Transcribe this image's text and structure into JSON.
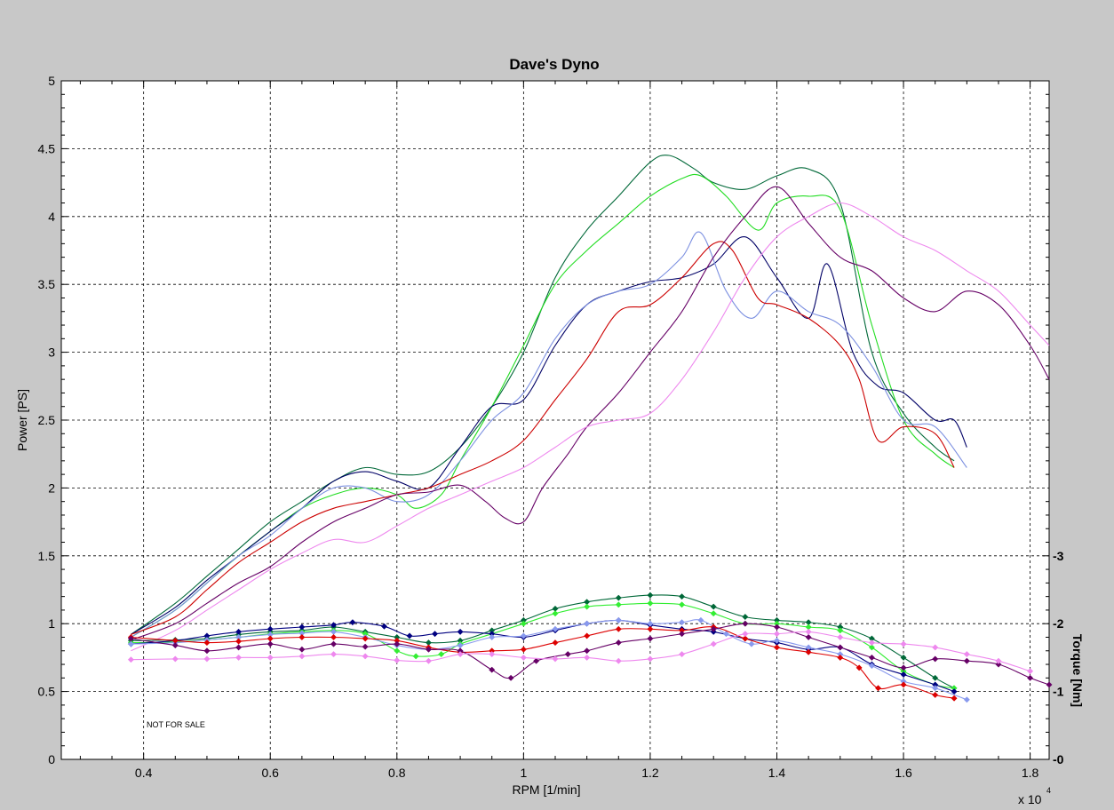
{
  "chart_data": {
    "type": "line",
    "title": "Dave's Dyno",
    "xlabel": "RPM [1/min]",
    "ylabel": "Power [PS]",
    "y2label": "Torque [Nm]",
    "x_multiplier_label": "x 10",
    "x_multiplier_exp": "4",
    "annotation": "NOT FOR SALE",
    "xlim": [
      2700,
      18300
    ],
    "ylim": [
      0,
      5
    ],
    "y2lim": [
      0,
      3
    ],
    "grid": true,
    "x_ticks": [
      {
        "value": 4000,
        "label": "0.4"
      },
      {
        "value": 6000,
        "label": "0.6"
      },
      {
        "value": 8000,
        "label": "0.8"
      },
      {
        "value": 10000,
        "label": "1"
      },
      {
        "value": 12000,
        "label": "1.2"
      },
      {
        "value": 14000,
        "label": "1.4"
      },
      {
        "value": 16000,
        "label": "1.6"
      },
      {
        "value": 18000,
        "label": "1.8"
      }
    ],
    "y_ticks": [
      {
        "value": 0,
        "label": "0"
      },
      {
        "value": 0.5,
        "label": "0.5"
      },
      {
        "value": 1,
        "label": "1"
      },
      {
        "value": 1.5,
        "label": "1.5"
      },
      {
        "value": 2,
        "label": "2"
      },
      {
        "value": 2.5,
        "label": "2.5"
      },
      {
        "value": 3,
        "label": "3"
      },
      {
        "value": 3.5,
        "label": "3.5"
      },
      {
        "value": 4,
        "label": "4"
      },
      {
        "value": 4.5,
        "label": "4.5"
      },
      {
        "value": 5,
        "label": "5"
      }
    ],
    "y2_ticks": [
      {
        "value": 0,
        "label": "0"
      },
      {
        "value": 1,
        "label": "1"
      },
      {
        "value": 2,
        "label": "2"
      },
      {
        "value": 3,
        "label": "3"
      }
    ],
    "power_series": [
      {
        "color": "#006838",
        "x": [
          3800,
          4500,
          5000,
          5500,
          6000,
          6500,
          7000,
          7500,
          8000,
          8500,
          9000,
          9500,
          10000,
          10500,
          11000,
          11500,
          12000,
          12300,
          12700,
          13000,
          13500,
          14000,
          14500,
          15000,
          15500,
          16000,
          16500,
          16800
        ],
        "y": [
          0.92,
          1.15,
          1.35,
          1.55,
          1.75,
          1.9,
          2.05,
          2.15,
          2.1,
          2.12,
          2.3,
          2.6,
          3.0,
          3.55,
          3.9,
          4.15,
          4.4,
          4.45,
          4.35,
          4.25,
          4.2,
          4.3,
          4.35,
          4.1,
          3.0,
          2.55,
          2.3,
          2.2
        ]
      },
      {
        "color": "#22dd22",
        "x": [
          3800,
          4500,
          5000,
          5500,
          6000,
          6500,
          7000,
          7500,
          8000,
          8300,
          8700,
          9000,
          9500,
          10000,
          10500,
          11000,
          11500,
          12000,
          12500,
          12800,
          13200,
          13700,
          14000,
          14500,
          15000,
          15500,
          16000,
          16500,
          16800
        ],
        "y": [
          0.9,
          1.1,
          1.3,
          1.5,
          1.68,
          1.85,
          1.95,
          2.0,
          1.95,
          1.85,
          1.95,
          2.2,
          2.6,
          3.05,
          3.5,
          3.75,
          3.95,
          4.15,
          4.28,
          4.3,
          4.15,
          3.9,
          4.1,
          4.15,
          4.05,
          3.2,
          2.5,
          2.25,
          2.15
        ]
      },
      {
        "color": "#000066",
        "x": [
          3800,
          4500,
          5000,
          5500,
          6000,
          6500,
          7000,
          7500,
          8000,
          8500,
          9000,
          9500,
          10000,
          10500,
          11000,
          11500,
          12000,
          12500,
          13000,
          13500,
          14000,
          14500,
          14800,
          15200,
          15600,
          16000,
          16500,
          16800,
          17000
        ],
        "y": [
          0.92,
          1.12,
          1.32,
          1.5,
          1.68,
          1.85,
          2.05,
          2.12,
          2.05,
          2.0,
          2.3,
          2.6,
          2.65,
          3.05,
          3.35,
          3.45,
          3.52,
          3.55,
          3.65,
          3.85,
          3.55,
          3.25,
          3.65,
          3.0,
          2.75,
          2.7,
          2.5,
          2.5,
          2.3
        ]
      },
      {
        "color": "#7b8fe0",
        "x": [
          3800,
          4500,
          5000,
          5500,
          6000,
          6500,
          7000,
          7500,
          8000,
          8500,
          9000,
          9500,
          10000,
          10500,
          11000,
          11500,
          12000,
          12500,
          12800,
          13200,
          13600,
          14000,
          14500,
          15000,
          15500,
          16000,
          16500,
          17000
        ],
        "y": [
          0.9,
          1.1,
          1.3,
          1.5,
          1.65,
          1.85,
          2.0,
          2.0,
          1.9,
          1.95,
          2.2,
          2.5,
          2.7,
          3.1,
          3.35,
          3.45,
          3.5,
          3.7,
          3.88,
          3.45,
          3.25,
          3.45,
          3.3,
          3.2,
          2.9,
          2.5,
          2.45,
          2.15
        ]
      },
      {
        "color": "#cc0000",
        "x": [
          3800,
          4500,
          5000,
          5500,
          6000,
          6500,
          7000,
          7500,
          8000,
          8500,
          9000,
          9500,
          10000,
          10500,
          11000,
          11500,
          12000,
          12500,
          13000,
          13300,
          13700,
          14000,
          14500,
          15000,
          15300,
          15600,
          16000,
          16500,
          16800
        ],
        "y": [
          0.92,
          1.05,
          1.25,
          1.45,
          1.6,
          1.75,
          1.85,
          1.9,
          1.95,
          2.0,
          2.1,
          2.2,
          2.35,
          2.65,
          2.95,
          3.3,
          3.35,
          3.55,
          3.8,
          3.75,
          3.4,
          3.35,
          3.25,
          3.05,
          2.8,
          2.35,
          2.45,
          2.4,
          2.15
        ]
      },
      {
        "color": "#660066",
        "x": [
          3800,
          4500,
          5000,
          5500,
          6000,
          6500,
          7000,
          7500,
          8000,
          8500,
          9000,
          9400,
          9700,
          10000,
          10300,
          10700,
          11000,
          11500,
          12000,
          12500,
          13000,
          13500,
          14000,
          14500,
          15000,
          15500,
          16000,
          16500,
          17000,
          17500,
          18000,
          18300
        ],
        "y": [
          0.88,
          1.0,
          1.15,
          1.3,
          1.42,
          1.6,
          1.75,
          1.85,
          1.95,
          1.97,
          2.02,
          1.9,
          1.78,
          1.75,
          2.0,
          2.25,
          2.45,
          2.7,
          3.0,
          3.3,
          3.7,
          4.0,
          4.22,
          3.95,
          3.7,
          3.6,
          3.4,
          3.3,
          3.45,
          3.35,
          3.05,
          2.8
        ]
      },
      {
        "color": "#ee88ee",
        "x": [
          3800,
          4500,
          5000,
          5500,
          6000,
          6500,
          7000,
          7500,
          8000,
          8500,
          9000,
          9500,
          10000,
          10500,
          11000,
          11500,
          12000,
          12500,
          13000,
          13500,
          14000,
          14500,
          15000,
          15500,
          16000,
          16500,
          17000,
          17500,
          18000,
          18300
        ],
        "y": [
          0.8,
          0.95,
          1.1,
          1.25,
          1.4,
          1.52,
          1.62,
          1.6,
          1.72,
          1.85,
          1.95,
          2.05,
          2.15,
          2.3,
          2.45,
          2.5,
          2.55,
          2.8,
          3.15,
          3.55,
          3.85,
          4.0,
          4.1,
          4.0,
          3.85,
          3.75,
          3.6,
          3.45,
          3.2,
          3.05
        ]
      }
    ],
    "torque_series": [
      {
        "color": "#006838",
        "x": [
          3800,
          4500,
          5000,
          5500,
          6000,
          6500,
          7000,
          7500,
          8000,
          8500,
          9000,
          9500,
          10000,
          10500,
          11000,
          11500,
          12000,
          12500,
          13000,
          13500,
          14000,
          14500,
          15000,
          15500,
          16000,
          16500,
          16800
        ],
        "y": [
          1.75,
          1.76,
          1.78,
          1.84,
          1.88,
          1.9,
          1.95,
          1.88,
          1.8,
          1.72,
          1.75,
          1.9,
          2.05,
          2.22,
          2.32,
          2.38,
          2.42,
          2.4,
          2.25,
          2.1,
          2.05,
          2.02,
          1.95,
          1.78,
          1.5,
          1.2,
          1.05
        ]
      },
      {
        "color": "#33ee33",
        "x": [
          3800,
          4500,
          5000,
          5500,
          6000,
          6500,
          7000,
          7500,
          8000,
          8300,
          8700,
          9000,
          9500,
          10000,
          10500,
          11000,
          11500,
          12000,
          12500,
          13000,
          13500,
          14000,
          14500,
          15000,
          15500,
          16000,
          16500,
          16800
        ],
        "y": [
          1.72,
          1.73,
          1.76,
          1.8,
          1.85,
          1.88,
          1.9,
          1.85,
          1.6,
          1.52,
          1.55,
          1.7,
          1.85,
          2.0,
          2.15,
          2.25,
          2.28,
          2.3,
          2.28,
          2.15,
          2.0,
          2.0,
          1.95,
          1.9,
          1.65,
          1.3,
          1.1,
          1.05
        ]
      },
      {
        "color": "#000080",
        "x": [
          3800,
          4500,
          5000,
          5500,
          6000,
          6500,
          7000,
          7300,
          7800,
          8200,
          8600,
          9000,
          9500,
          10000,
          10500,
          11000,
          11500,
          12000,
          12500,
          13000,
          13500,
          14000,
          14500,
          15000,
          15500,
          16000,
          16500,
          16800
        ],
        "y": [
          1.7,
          1.75,
          1.82,
          1.88,
          1.92,
          1.95,
          1.98,
          2.02,
          1.96,
          1.82,
          1.85,
          1.88,
          1.85,
          1.8,
          1.9,
          2.0,
          2.05,
          1.98,
          1.92,
          1.88,
          1.78,
          1.72,
          1.62,
          1.65,
          1.4,
          1.25,
          1.1,
          1.0
        ]
      },
      {
        "color": "#8899ee",
        "x": [
          3800,
          4500,
          5000,
          5500,
          6000,
          6500,
          7000,
          7500,
          8000,
          8500,
          9000,
          9500,
          10000,
          10500,
          11000,
          11500,
          12000,
          12500,
          12800,
          13200,
          13600,
          14000,
          14500,
          15000,
          15500,
          16000,
          16500,
          17000
        ],
        "y": [
          1.7,
          1.72,
          1.76,
          1.8,
          1.84,
          1.86,
          1.88,
          1.8,
          1.68,
          1.62,
          1.68,
          1.8,
          1.82,
          1.92,
          2.0,
          2.05,
          2.0,
          2.02,
          2.05,
          1.85,
          1.7,
          1.75,
          1.65,
          1.55,
          1.38,
          1.15,
          1.05,
          0.88
        ]
      },
      {
        "color": "#dd0000",
        "x": [
          3800,
          4500,
          5000,
          5500,
          6000,
          6500,
          7000,
          7500,
          8000,
          8500,
          9000,
          9500,
          10000,
          10500,
          11000,
          11500,
          12000,
          12500,
          13000,
          13500,
          14000,
          14500,
          15000,
          15300,
          15600,
          16000,
          16500,
          16800
        ],
        "y": [
          1.8,
          1.75,
          1.72,
          1.74,
          1.78,
          1.8,
          1.8,
          1.78,
          1.75,
          1.65,
          1.58,
          1.6,
          1.62,
          1.72,
          1.82,
          1.92,
          1.92,
          1.9,
          1.95,
          1.78,
          1.65,
          1.58,
          1.5,
          1.35,
          1.05,
          1.1,
          0.95,
          0.9
        ]
      },
      {
        "color": "#660066",
        "x": [
          3800,
          4500,
          5000,
          5500,
          6000,
          6500,
          7000,
          7500,
          8000,
          8500,
          9000,
          9500,
          9800,
          10200,
          10700,
          11000,
          11500,
          12000,
          12500,
          13000,
          13500,
          14000,
          14500,
          15000,
          15500,
          16000,
          16500,
          17000,
          17500,
          18000,
          18300
        ],
        "y": [
          1.78,
          1.68,
          1.6,
          1.65,
          1.7,
          1.62,
          1.7,
          1.66,
          1.7,
          1.62,
          1.6,
          1.32,
          1.2,
          1.45,
          1.55,
          1.6,
          1.72,
          1.78,
          1.85,
          1.92,
          2.0,
          1.95,
          1.8,
          1.65,
          1.5,
          1.35,
          1.48,
          1.45,
          1.4,
          1.2,
          1.1
        ]
      },
      {
        "color": "#ee88ee",
        "x": [
          3800,
          4500,
          5000,
          5500,
          6000,
          6500,
          7000,
          7500,
          8000,
          8500,
          9000,
          9500,
          10000,
          10500,
          11000,
          11500,
          12000,
          12500,
          13000,
          13500,
          14000,
          14500,
          15000,
          15500,
          16000,
          16500,
          17000,
          17500,
          18000
        ],
        "y": [
          1.47,
          1.48,
          1.48,
          1.5,
          1.5,
          1.52,
          1.55,
          1.52,
          1.46,
          1.45,
          1.55,
          1.55,
          1.5,
          1.48,
          1.5,
          1.45,
          1.48,
          1.55,
          1.7,
          1.85,
          1.85,
          1.88,
          1.8,
          1.72,
          1.7,
          1.65,
          1.55,
          1.45,
          1.3
        ]
      }
    ]
  }
}
